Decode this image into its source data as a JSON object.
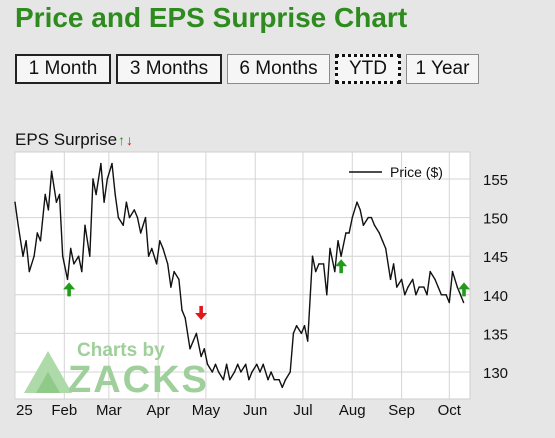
{
  "title": "Price and EPS Surprise Chart",
  "ranges": [
    "1 Month",
    "3 Months",
    "6 Months",
    "YTD",
    "1 Year"
  ],
  "active_range": "YTD",
  "eps_label": "EPS Surprise",
  "eps_up_glyph": "↑",
  "eps_down_glyph": "↓",
  "watermark": {
    "line1": "Charts by",
    "line2": "ZACKS"
  },
  "colors": {
    "title": "#2e8b1e",
    "line": "#111111",
    "up_arrow": "#239b1a",
    "down_arrow": "#e3161b",
    "plot_bg": "#ffffff",
    "page_bg": "#e6e6e6",
    "grid": "#d4d4d4",
    "watermark": "#9fcf9a"
  },
  "chart_data": {
    "type": "line",
    "series": [
      {
        "name": "Price ($)",
        "x": [
          "2025-01-01",
          "2025-01-03",
          "2025-01-06",
          "2025-01-08",
          "2025-01-10",
          "2025-01-13",
          "2025-01-15",
          "2025-01-17",
          "2025-01-20",
          "2025-01-22",
          "2025-01-24",
          "2025-01-27",
          "2025-01-29",
          "2025-01-31",
          "2025-02-03",
          "2025-02-05",
          "2025-02-07",
          "2025-02-10",
          "2025-02-12",
          "2025-02-14",
          "2025-02-17",
          "2025-02-19",
          "2025-02-21",
          "2025-02-24",
          "2025-02-26",
          "2025-02-28",
          "2025-03-03",
          "2025-03-05",
          "2025-03-07",
          "2025-03-10",
          "2025-03-12",
          "2025-03-14",
          "2025-03-17",
          "2025-03-19",
          "2025-03-21",
          "2025-03-24",
          "2025-03-26",
          "2025-03-28",
          "2025-03-31",
          "2025-04-02",
          "2025-04-04",
          "2025-04-07",
          "2025-04-09",
          "2025-04-11",
          "2025-04-14",
          "2025-04-16",
          "2025-04-18",
          "2025-04-21",
          "2025-04-23",
          "2025-04-25",
          "2025-04-28",
          "2025-04-30",
          "2025-05-02",
          "2025-05-05",
          "2025-05-07",
          "2025-05-09",
          "2025-05-12",
          "2025-05-14",
          "2025-05-16",
          "2025-05-19",
          "2025-05-21",
          "2025-05-23",
          "2025-05-26",
          "2025-05-28",
          "2025-05-30",
          "2025-06-02",
          "2025-06-04",
          "2025-06-06",
          "2025-06-09",
          "2025-06-11",
          "2025-06-13",
          "2025-06-16",
          "2025-06-18",
          "2025-06-20",
          "2025-06-23",
          "2025-06-25",
          "2025-06-27",
          "2025-06-30",
          "2025-07-02",
          "2025-07-04",
          "2025-07-07",
          "2025-07-09",
          "2025-07-11",
          "2025-07-14",
          "2025-07-16",
          "2025-07-18",
          "2025-07-21",
          "2025-07-23",
          "2025-07-25",
          "2025-07-28",
          "2025-07-30",
          "2025-08-01",
          "2025-08-04",
          "2025-08-06",
          "2025-08-08",
          "2025-08-11",
          "2025-08-13",
          "2025-08-15",
          "2025-08-18",
          "2025-08-20",
          "2025-08-22",
          "2025-08-25",
          "2025-08-27",
          "2025-08-29",
          "2025-09-01",
          "2025-09-03",
          "2025-09-05",
          "2025-09-08",
          "2025-09-10",
          "2025-09-12",
          "2025-09-15",
          "2025-09-17",
          "2025-09-19",
          "2025-09-22",
          "2025-09-24",
          "2025-09-26",
          "2025-09-29",
          "2025-10-01",
          "2025-10-03",
          "2025-10-06",
          "2025-10-08",
          "2025-10-10"
        ],
        "y": [
          152,
          149,
          145,
          147,
          143,
          145,
          148,
          147,
          153,
          151,
          156,
          152,
          153,
          145,
          142,
          146,
          144,
          145,
          143,
          149,
          145,
          155,
          153,
          157,
          152,
          155,
          157,
          153,
          150,
          149,
          152,
          150,
          151,
          150,
          148,
          150,
          145,
          146,
          144,
          147,
          146,
          144,
          141,
          143,
          142,
          138,
          137,
          133,
          134,
          135,
          132,
          133,
          131,
          130,
          131,
          130,
          129,
          131,
          129,
          130,
          131,
          130,
          131,
          129,
          130,
          131,
          130,
          131,
          129,
          130,
          129,
          129,
          128,
          129,
          130,
          135,
          136,
          135,
          136,
          134,
          145,
          143,
          144,
          144,
          140,
          146,
          143,
          147,
          145,
          148,
          148,
          150,
          152,
          151,
          149,
          150,
          150,
          149,
          148,
          147,
          146,
          142,
          144,
          141,
          142,
          140,
          141,
          142,
          140,
          141,
          141,
          140,
          143,
          142,
          141,
          140,
          140,
          139,
          143,
          141,
          140,
          139
        ]
      }
    ],
    "eps_surprises": [
      {
        "date": "2025-02-04",
        "direction": "up",
        "price": 142
      },
      {
        "date": "2025-04-28",
        "direction": "down",
        "price": 137
      },
      {
        "date": "2025-07-25",
        "direction": "up",
        "price": 145
      },
      {
        "date": "2025-10-12",
        "direction": "up",
        "price": 142
      }
    ],
    "x_tick_labels": [
      "25",
      "Feb",
      "Mar",
      "Apr",
      "May",
      "Jun",
      "Jul",
      "Aug",
      "Sep",
      "Oct"
    ],
    "x_ticks": [
      "2025-01-01",
      "2025-02-01",
      "2025-03-01",
      "2025-04-01",
      "2025-05-01",
      "2025-06-01",
      "2025-07-01",
      "2025-08-01",
      "2025-09-01",
      "2025-10-01"
    ],
    "y_ticks": [
      130,
      135,
      140,
      145,
      150,
      155
    ],
    "ylim": [
      126.5,
      158.5
    ],
    "xlim": [
      "2025-01-01",
      "2025-10-14"
    ],
    "title": "Price and EPS Surprise Chart",
    "grid": true,
    "legend_position": "top-right"
  }
}
